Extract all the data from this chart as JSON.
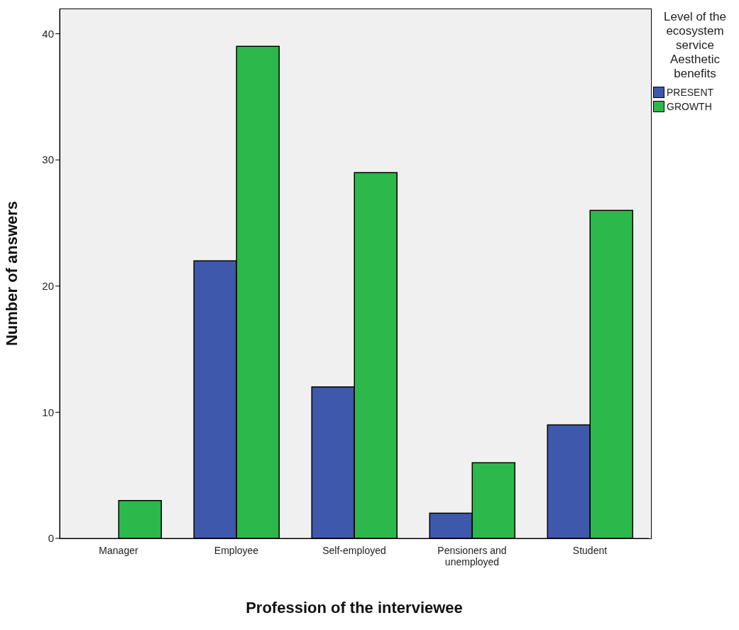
{
  "chart_data": {
    "type": "bar",
    "xlabel": "Profession of the interviewee",
    "ylabel": "Number of answers",
    "legend_title": "Level of the ecosystem service Aesthetic benefits",
    "categories": [
      "Manager",
      "Employee",
      "Self-employed",
      "Pensioners and unemployed",
      "Student"
    ],
    "series": [
      {
        "name": "PRESENT",
        "color": "#3e58ac",
        "values": [
          0,
          22,
          12,
          2,
          9
        ]
      },
      {
        "name": "GROWTH",
        "color": "#2db84b",
        "values": [
          3,
          39,
          29,
          6,
          26
        ]
      }
    ],
    "ylim": [
      0,
      42
    ],
    "yticks": [
      0,
      10,
      20,
      30,
      40
    ],
    "grid": false,
    "legend": "top right"
  }
}
